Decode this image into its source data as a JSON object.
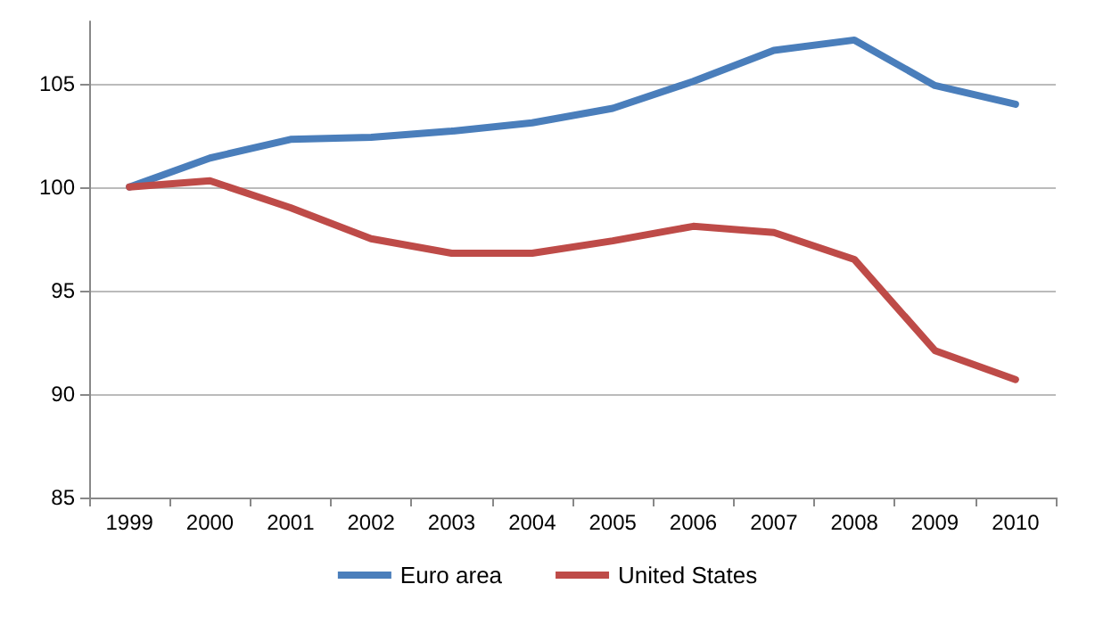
{
  "chart_data": {
    "type": "line",
    "categories": [
      "1999",
      "2000",
      "2001",
      "2002",
      "2003",
      "2004",
      "2005",
      "2006",
      "2007",
      "2008",
      "2009",
      "2010"
    ],
    "series": [
      {
        "name": "Euro area",
        "color": "#4a7ebb",
        "values": [
          100,
          101.4,
          102.3,
          102.4,
          102.7,
          103.1,
          103.8,
          105.1,
          106.6,
          107.1,
          104.9,
          104.0
        ]
      },
      {
        "name": "United States",
        "color": "#be4b48",
        "values": [
          100,
          100.3,
          99.0,
          97.5,
          96.8,
          96.8,
          97.4,
          98.1,
          97.8,
          96.5,
          92.1,
          90.7
        ]
      }
    ],
    "ylim": [
      85,
      108
    ],
    "yticks": [
      85,
      90,
      95,
      100,
      105
    ],
    "grid": "y",
    "legend": "bottom",
    "marker": "none",
    "line_style": "solid"
  }
}
